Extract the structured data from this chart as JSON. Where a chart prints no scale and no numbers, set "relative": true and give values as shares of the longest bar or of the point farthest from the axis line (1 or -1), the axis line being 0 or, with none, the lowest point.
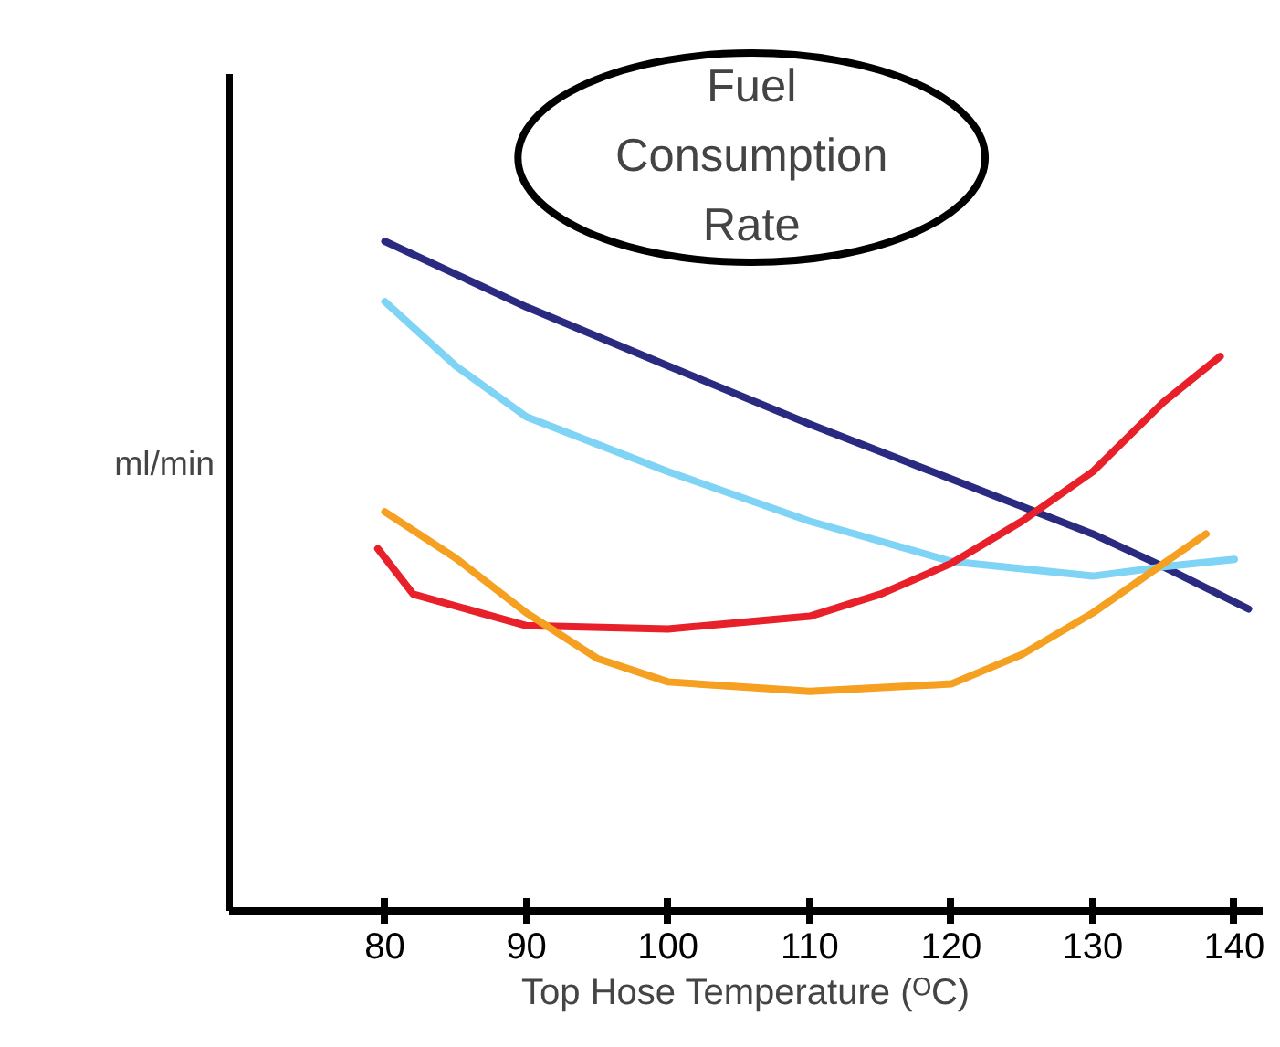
{
  "chart_data": {
    "type": "line",
    "title": "Fuel Consumption Rate",
    "xlabel": "Top Hose Temperature (ᴼC)",
    "ylabel": "ml/min",
    "relative": true,
    "grid": false,
    "tick_labels": "x",
    "xlim": [
      69,
      142
    ],
    "xticks": [
      80,
      90,
      100,
      110,
      120,
      130,
      140
    ],
    "series": [
      {
        "color": "#2a2a80",
        "x": [
          80,
          90,
          100,
          110,
          120,
          130,
          135,
          141
        ],
        "values": [
          1.0,
          0.902,
          0.814,
          0.727,
          0.645,
          0.563,
          0.514,
          0.451
        ]
      },
      {
        "color": "#7fd4f5",
        "x": [
          80,
          85,
          90,
          100,
          110,
          120,
          130,
          135,
          140
        ],
        "values": [
          0.91,
          0.814,
          0.738,
          0.656,
          0.582,
          0.522,
          0.5,
          0.514,
          0.525
        ]
      },
      {
        "color": "#e8202a",
        "x": [
          79.5,
          82,
          90,
          100,
          110,
          115,
          120,
          125,
          130,
          135,
          139
        ],
        "values": [
          0.541,
          0.473,
          0.426,
          0.421,
          0.44,
          0.473,
          0.519,
          0.582,
          0.656,
          0.76,
          0.828
        ]
      },
      {
        "color": "#f5a020",
        "x": [
          80,
          85,
          90,
          95,
          100,
          110,
          120,
          125,
          130,
          138
        ],
        "values": [
          0.596,
          0.527,
          0.445,
          0.377,
          0.342,
          0.328,
          0.339,
          0.383,
          0.445,
          0.563
        ]
      }
    ]
  }
}
